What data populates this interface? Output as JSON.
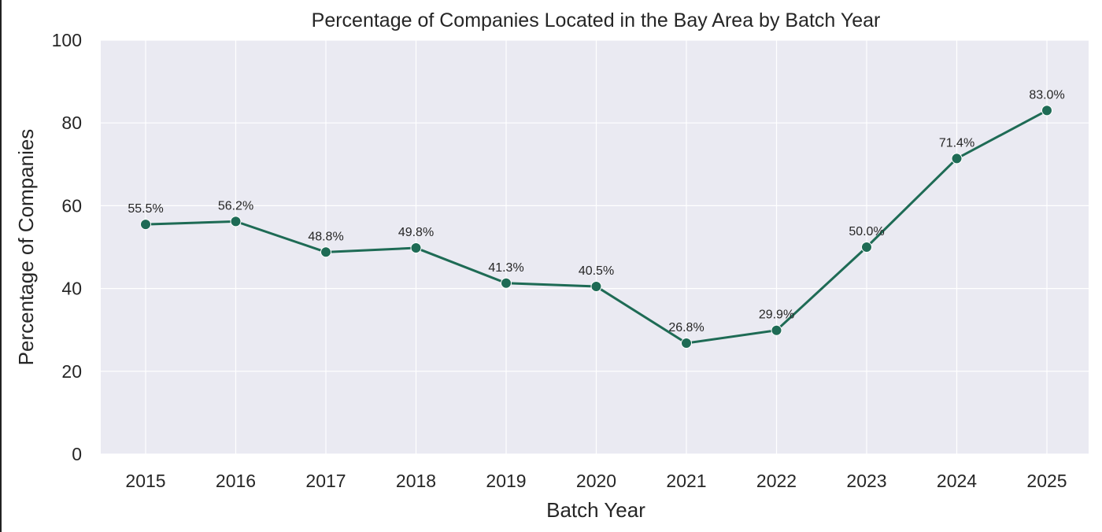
{
  "chart_data": {
    "type": "line",
    "title": "Percentage of Companies Located in the Bay Area by Batch Year",
    "xlabel": "Batch Year",
    "ylabel": "Percentage of Companies",
    "categories": [
      "2015",
      "2016",
      "2017",
      "2018",
      "2019",
      "2020",
      "2021",
      "2022",
      "2023",
      "2024",
      "2025"
    ],
    "values": [
      55.5,
      56.2,
      48.8,
      49.8,
      41.3,
      40.5,
      26.8,
      29.9,
      50.0,
      71.4,
      83.0
    ],
    "data_labels": [
      "55.5%",
      "56.2%",
      "48.8%",
      "49.8%",
      "41.3%",
      "40.5%",
      "26.8%",
      "29.9%",
      "50.0%",
      "71.4%",
      "83.0%"
    ],
    "ylim": [
      0,
      100
    ],
    "yticks": [
      "0",
      "20",
      "40",
      "60",
      "80",
      "100"
    ],
    "grid": true,
    "colors": {
      "line": "#1e6b55",
      "background": "#eaeaf2",
      "grid": "#ffffff"
    }
  }
}
